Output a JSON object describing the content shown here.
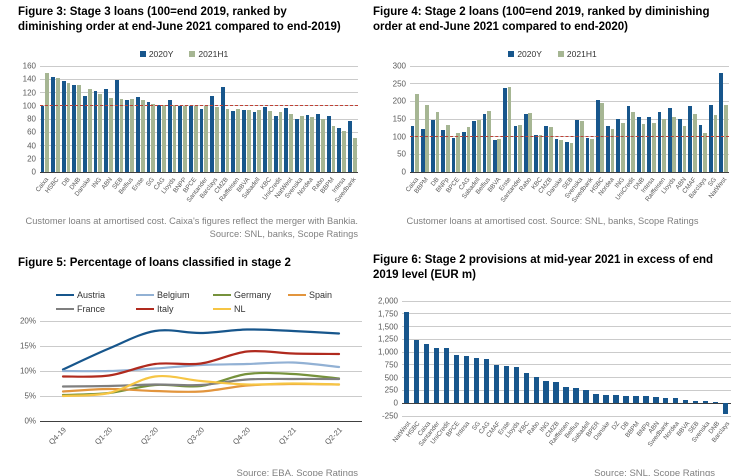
{
  "colors": {
    "bar_blue": "#17568c",
    "bar_green": "#a6b693",
    "refline_red": "#bf4135",
    "grid_gray": "#cbcbcb",
    "caption_gray": "#808080"
  },
  "captions": {
    "fig3_line1": "Customer loans at amortised cost. Caixa's figures reflect the merger with Bankia.",
    "fig3_line2": "Source: SNL, banks, Scope Ratings",
    "fig4": "Customer loans at amortised cost. Source: SNL, banks, Scope Ratings",
    "fig5_source": "Source: EBA, Scope Ratings",
    "fig6_source": "Source: SNL, Scope Ratings"
  },
  "chart_data": [
    {
      "id": "f3",
      "type": "bar",
      "title": "Figure 3: Stage 3 loans (100=end 2019, ranked by diminishing order at end-June 2021 compared to end-2019)",
      "ylim": [
        0,
        160
      ],
      "ytick_vals": [
        0,
        20,
        40,
        60,
        80,
        100,
        120,
        140,
        160
      ],
      "ytick_labels": [
        "0",
        "20",
        "40",
        "60",
        "80",
        "100",
        "120",
        "140",
        "160"
      ],
      "axis_at": 0,
      "refline": 100,
      "legend_style": "square",
      "legend_position": "top-center",
      "grid": true,
      "categories": [
        "Caixa",
        "HSBC",
        "DB",
        "DNB",
        "Danske",
        "ING",
        "ABN",
        "SEB",
        "Belfius",
        "Erste",
        "SG",
        "CAG",
        "Lloyds",
        "BNPP",
        "BPCE",
        "Santander",
        "Barclays",
        "CMZB",
        "Raiffeisen",
        "BBVA",
        "Sabadell",
        "KBC",
        "UniCredit",
        "NatWest",
        "Svenska",
        "Nordea",
        "Rabo",
        "BBPM",
        "Intesa",
        "Swedbank"
      ],
      "series": [
        {
          "name": "2020Y",
          "color": "#17568c",
          "values": [
            99,
            143,
            137,
            132,
            114,
            122,
            126,
            139,
            109,
            113,
            106,
            101,
            108,
            100,
            100,
            95,
            114,
            128,
            92,
            93,
            90,
            98,
            85,
            96,
            80,
            86,
            88,
            84,
            66,
            77
          ]
        },
        {
          "name": "2021H1",
          "color": "#a6b693",
          "values": [
            150,
            142,
            135,
            131,
            125,
            117,
            111,
            110,
            110,
            109,
            103,
            101,
            101,
            100,
            99,
            99,
            98,
            95,
            95,
            94,
            93,
            92,
            90,
            88,
            85,
            83,
            80,
            70,
            62,
            52
          ]
        }
      ]
    },
    {
      "id": "f4",
      "type": "bar",
      "title": "Figure 4: Stage 2 loans (100=end 2019, ranked by diminishing order at end-June 2021 compared to end-2020)",
      "ylim": [
        0,
        300
      ],
      "ytick_vals": [
        0,
        50,
        100,
        150,
        200,
        250,
        300
      ],
      "ytick_labels": [
        "0",
        "50",
        "100",
        "150",
        "200",
        "250",
        "300"
      ],
      "axis_at": 0,
      "refline": 100,
      "legend_style": "square",
      "legend_position": "top-center",
      "grid": true,
      "categories": [
        "Caixa",
        "BBPM",
        "DB",
        "BNPp",
        "BPCE",
        "CAG",
        "Sabadell",
        "Belfius",
        "BBVA",
        "Erste",
        "Santander",
        "Rabo",
        "KBC",
        "CMZB",
        "Danske",
        "SEB",
        "Svenska",
        "Swedbank",
        "HSBC",
        "Nordea",
        "ING",
        "UniCredit",
        "DNB",
        "Intesa",
        "Raiffeisen",
        "Lloyds",
        "ABN",
        "CMAF",
        "Barclays",
        "SG",
        "NatWest"
      ],
      "series": [
        {
          "name": "2020Y",
          "color": "#17568c",
          "values": [
            130,
            122,
            146,
            119,
            95,
            112,
            143,
            163,
            91,
            238,
            131,
            165,
            105,
            130,
            92,
            85,
            148,
            97,
            204,
            130,
            151,
            188,
            155,
            157,
            169,
            181,
            150,
            186,
            133,
            190,
            281
          ]
        },
        {
          "name": "2021H1",
          "color": "#a6b693",
          "values": [
            221,
            191,
            171,
            134,
            110,
            126,
            146,
            173,
            94,
            240,
            133,
            167,
            104,
            128,
            90,
            81,
            143,
            93,
            196,
            122,
            139,
            171,
            137,
            138,
            151,
            157,
            131,
            163,
            111,
            162,
            190
          ]
        }
      ]
    },
    {
      "id": "f5",
      "type": "line",
      "title": "Figure 5: Percentage of loans classified in stage 2",
      "ylim": [
        0,
        20
      ],
      "ytick_vals": [
        0,
        5,
        10,
        15,
        20
      ],
      "ytick_labels": [
        "0%",
        "5%",
        "10%",
        "15%",
        "20%"
      ],
      "axis_at": 0,
      "legend_style": "line",
      "legend_position": "top-left-grid",
      "grid": true,
      "x": [
        "Q4-19",
        "Q1-20",
        "Q2-20",
        "Q3-20",
        "Q4-20",
        "Q1-21",
        "Q2-21"
      ],
      "series": [
        {
          "name": "Austria",
          "color": "#17568c",
          "values": [
            10.3,
            14.5,
            18.0,
            17.6,
            18.3,
            18.0,
            17.5
          ]
        },
        {
          "name": "Belgium",
          "color": "#92b1d4",
          "values": [
            10.0,
            10.0,
            10.5,
            11.2,
            11.4,
            11.7,
            10.8
          ]
        },
        {
          "name": "Germany",
          "color": "#76923c",
          "values": [
            5.2,
            5.6,
            7.2,
            7.0,
            9.4,
            9.4,
            8.5
          ]
        },
        {
          "name": "Spain",
          "color": "#e2953d",
          "values": [
            5.9,
            6.4,
            6.0,
            5.9,
            7.1,
            7.4,
            7.3
          ]
        },
        {
          "name": "France",
          "color": "#7f7f7f",
          "values": [
            6.9,
            7.0,
            7.3,
            7.2,
            8.3,
            8.4,
            8.4
          ]
        },
        {
          "name": "Italy",
          "color": "#b02a1e",
          "values": [
            8.9,
            9.1,
            11.4,
            11.5,
            13.9,
            13.5,
            13.4
          ]
        },
        {
          "name": "NL",
          "color": "#f6c544",
          "values": [
            5.0,
            5.6,
            8.9,
            8.0,
            7.3,
            7.5,
            7.3
          ]
        }
      ]
    },
    {
      "id": "f6",
      "type": "bar",
      "title": "Figure 6: Stage 2 provisions at mid-year 2021 in excess of end 2019 level (EUR m)",
      "ylim": [
        -250,
        2000
      ],
      "ytick_vals": [
        -250,
        0,
        250,
        500,
        750,
        1000,
        1250,
        1500,
        1750,
        2000
      ],
      "ytick_labels": [
        "-250",
        "0",
        "250",
        "500",
        "750",
        "1,000",
        "1,250",
        "1,500",
        "1,750",
        "2,000"
      ],
      "axis_at": 0,
      "legend_style": "none",
      "grid": true,
      "categories": [
        "NatWest",
        "HSBC",
        "Caixa",
        "Santander",
        "UniCredit",
        "BPCE",
        "Intesa",
        "SG",
        "CAG",
        "CMAF",
        "Erste",
        "Lloyds",
        "KBC",
        "Rabo",
        "ING",
        "CMZB",
        "Raiffeisen",
        "Belfius",
        "Sabadell",
        "BPER",
        "Danske",
        "DZ",
        "DB",
        "BBPM",
        "BNPp",
        "ABN",
        "Swedbank",
        "Nordea",
        "BBVA",
        "SEB",
        "Svenska",
        "DNB",
        "Barclays"
      ],
      "series": [
        {
          "name": "Stage 2 provisions excess",
          "color": "#17568c",
          "values": [
            1780,
            1240,
            1160,
            1090,
            1080,
            940,
            930,
            880,
            860,
            740,
            730,
            710,
            590,
            510,
            430,
            420,
            310,
            300,
            250,
            190,
            160,
            155,
            145,
            140,
            135,
            120,
            110,
            95,
            70,
            50,
            45,
            25,
            -220
          ]
        }
      ]
    }
  ]
}
